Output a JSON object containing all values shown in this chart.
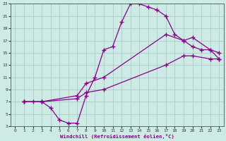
{
  "xlabel": "Windchill (Refroidissement éolien,°C)",
  "bg_color": "#ceeae4",
  "line_color": "#880088",
  "grid_color": "#aacccc",
  "xlim": [
    -0.5,
    23.5
  ],
  "ylim": [
    3,
    23
  ],
  "xticks": [
    0,
    1,
    2,
    3,
    4,
    5,
    6,
    7,
    8,
    9,
    10,
    11,
    12,
    13,
    14,
    15,
    16,
    17,
    18,
    19,
    20,
    21,
    22,
    23
  ],
  "yticks": [
    3,
    5,
    7,
    9,
    11,
    13,
    15,
    17,
    19,
    21,
    23
  ],
  "line1_x": [
    1,
    2,
    3,
    4,
    5,
    6,
    7,
    8,
    9,
    10,
    11,
    12,
    13,
    14,
    15,
    16,
    17,
    18,
    19,
    20,
    21,
    22,
    23
  ],
  "line1_y": [
    7,
    7,
    7,
    6,
    4,
    3.5,
    3.5,
    8,
    11,
    15.5,
    16,
    20,
    23,
    23,
    22.5,
    22,
    21,
    18,
    17,
    16,
    15.5,
    15.5,
    14
  ],
  "line2_x": [
    1,
    3,
    7,
    8,
    10,
    17,
    19,
    20,
    22,
    23
  ],
  "line2_y": [
    7,
    7,
    8,
    10,
    11,
    18,
    17,
    17.5,
    15.5,
    15
  ],
  "line3_x": [
    1,
    3,
    7,
    8,
    10,
    17,
    19,
    20,
    22,
    23
  ],
  "line3_y": [
    7,
    7,
    7.5,
    8.5,
    9,
    13,
    14.5,
    14.5,
    14,
    14
  ]
}
